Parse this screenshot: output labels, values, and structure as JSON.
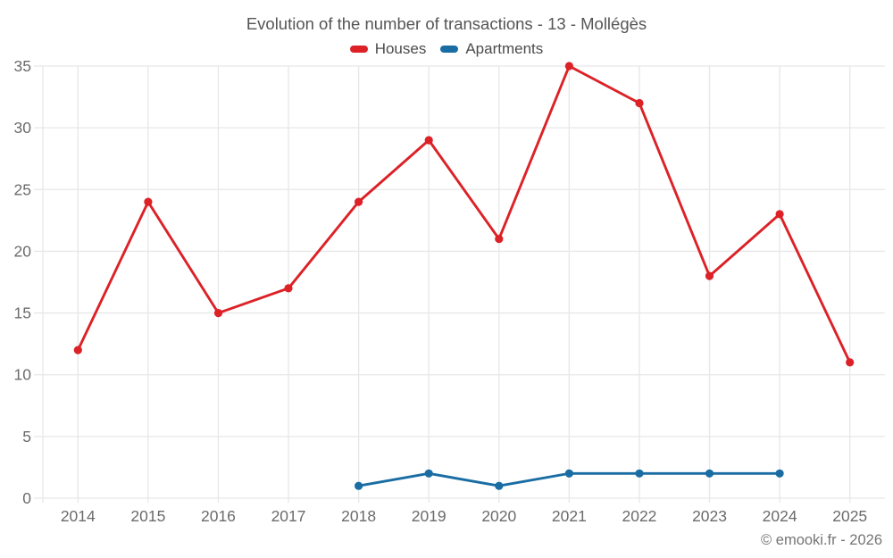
{
  "chart_data": {
    "type": "line",
    "title": "Evolution of the number of transactions - 13 - Mollégès",
    "categories": [
      "2014",
      "2015",
      "2016",
      "2017",
      "2018",
      "2019",
      "2020",
      "2021",
      "2022",
      "2023",
      "2024",
      "2025"
    ],
    "series": [
      {
        "name": "Houses",
        "color": "#dc2127",
        "values": [
          12,
          24,
          15,
          17,
          24,
          29,
          21,
          35,
          32,
          18,
          23,
          11
        ]
      },
      {
        "name": "Apartments",
        "color": "#1a6da3",
        "values": [
          null,
          null,
          null,
          null,
          1,
          2,
          1,
          2,
          2,
          2,
          2,
          null
        ]
      }
    ],
    "xlabel": "",
    "ylabel": "",
    "ylim": [
      0,
      35
    ],
    "ytick_step": 5,
    "yticks": [
      0,
      5,
      10,
      15,
      20,
      25,
      30,
      35
    ],
    "grid": true,
    "legend_position": "top",
    "attribution": "© emooki.fr - 2026",
    "colors": {
      "grid": "#e7e7e7",
      "axis_text": "#6b6b6b",
      "title_text": "#555555",
      "legend_text": "#4c4c4c",
      "background": "#ffffff"
    }
  }
}
